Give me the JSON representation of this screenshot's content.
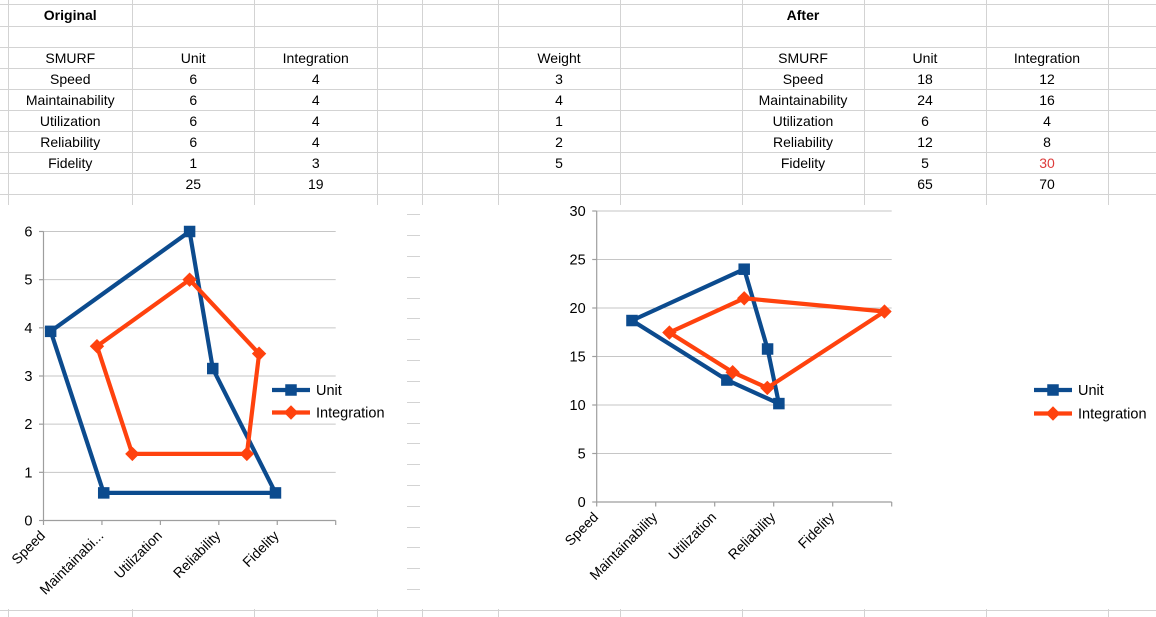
{
  "tables": {
    "original": {
      "title": "Original",
      "headers": [
        "SMURF",
        "Unit",
        "Integration"
      ],
      "rows": [
        {
          "smurf": "Speed",
          "unit": "6",
          "integration": "4"
        },
        {
          "smurf": "Maintainability",
          "unit": "6",
          "integration": "4"
        },
        {
          "smurf": "Utilization",
          "unit": "6",
          "integration": "4"
        },
        {
          "smurf": "Reliability",
          "unit": "6",
          "integration": "4"
        },
        {
          "smurf": "Fidelity",
          "unit": "1",
          "integration": "3"
        }
      ],
      "totals": {
        "unit": "25",
        "integration": "19"
      }
    },
    "weights": {
      "header": "Weight",
      "values": [
        "3",
        "4",
        "1",
        "2",
        "5"
      ]
    },
    "after": {
      "title": "After",
      "headers": [
        "SMURF",
        "Unit",
        "Integration"
      ],
      "rows": [
        {
          "smurf": "Speed",
          "unit": "18",
          "integration": "12"
        },
        {
          "smurf": "Maintainability",
          "unit": "24",
          "integration": "16"
        },
        {
          "smurf": "Utilization",
          "unit": "6",
          "integration": "4"
        },
        {
          "smurf": "Reliability",
          "unit": "12",
          "integration": "8"
        },
        {
          "smurf": "Fidelity",
          "unit": "5",
          "integration": "30",
          "integration_highlight": true
        }
      ],
      "totals": {
        "unit": "65",
        "integration": "70"
      }
    }
  },
  "chart_data": [
    {
      "type": "radar",
      "title": "",
      "categories": [
        "Speed",
        "Maintainabi...",
        "Utilization",
        "Reliability",
        "Fidelity"
      ],
      "series": [
        {
          "name": "Unit",
          "values": [
            6,
            6,
            6,
            6,
            1
          ],
          "color": "#0c4b8e",
          "marker": "square"
        },
        {
          "name": "Integration",
          "values": [
            4,
            4,
            4,
            4,
            3
          ],
          "color": "#ff420e",
          "marker": "diamond"
        }
      ],
      "value_axis": {
        "min": 0,
        "max": 6,
        "step": 1,
        "tick_labels": [
          "0",
          "1",
          "2",
          "3",
          "4",
          "5",
          "6"
        ]
      },
      "grid": "horizontal",
      "legend_position": "right"
    },
    {
      "type": "radar",
      "title": "",
      "categories": [
        "Speed",
        "Maintainability",
        "Utilization",
        "Reliability",
        "Fidelity"
      ],
      "series": [
        {
          "name": "Unit",
          "values": [
            18,
            24,
            6,
            12,
            5
          ],
          "color": "#0c4b8e",
          "marker": "square"
        },
        {
          "name": "Integration",
          "values": [
            12,
            16,
            4,
            8,
            30
          ],
          "color": "#ff420e",
          "marker": "diamond"
        }
      ],
      "value_axis": {
        "min": 0,
        "max": 30,
        "step": 5,
        "tick_labels": [
          "0",
          "5",
          "10",
          "15",
          "20",
          "25",
          "30"
        ]
      },
      "grid": "horizontal",
      "legend_position": "right"
    }
  ],
  "colors": {
    "series_unit": "#0c4b8e",
    "series_integration": "#ff420e",
    "highlight_red": "#dd3c3c",
    "sheet_grid": "#d3d3d3",
    "chart_grid": "#c6c6c6",
    "chart_axis": "#9e9e9e",
    "text": "#000000"
  }
}
